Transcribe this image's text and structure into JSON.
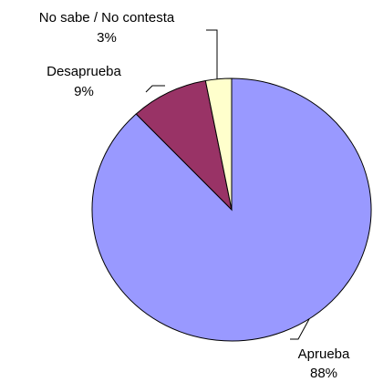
{
  "chart_data": {
    "type": "pie",
    "title": "",
    "slices": [
      {
        "label": "Aprueba",
        "percent_label": "88%",
        "value": 88,
        "color": "#9999ff"
      },
      {
        "label": "Desaprueba",
        "percent_label": "9%",
        "value": 9,
        "color": "#993366"
      },
      {
        "label": "No sabe / No contesta",
        "percent_label": "3%",
        "value": 3,
        "color": "#ffffcc"
      }
    ],
    "legend": "none",
    "data_labels": "outside-with-leader-lines"
  }
}
